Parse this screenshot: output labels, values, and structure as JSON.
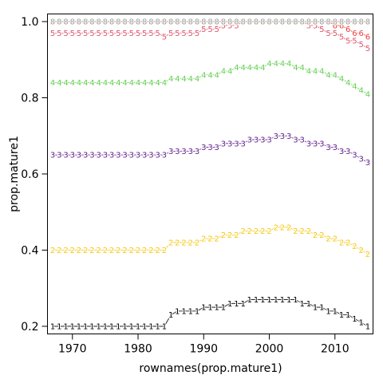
{
  "chart_data": {
    "type": "line",
    "xlabel": "rownames(prop.mature1)",
    "ylabel": "prop.mature1",
    "xlim": [
      1966.2,
      2015.8
    ],
    "ylim": [
      0.18,
      1.02
    ],
    "xticks": [
      1970,
      1980,
      1990,
      2000,
      2010
    ],
    "xtick_labels": [
      "1970",
      "1980",
      "1990",
      "2000",
      "2010"
    ],
    "yticks": [
      0.2,
      0.4,
      0.6,
      0.8,
      1.0
    ],
    "ytick_labels": [
      "0.2",
      "0.4",
      "0.6",
      "0.8",
      "1.0"
    ],
    "grid": false,
    "x": [
      1967,
      1968,
      1969,
      1970,
      1971,
      1972,
      1973,
      1974,
      1975,
      1976,
      1977,
      1978,
      1979,
      1980,
      1981,
      1982,
      1983,
      1984,
      1985,
      1986,
      1987,
      1988,
      1989,
      1990,
      1991,
      1992,
      1993,
      1994,
      1995,
      1996,
      1997,
      1998,
      1999,
      2000,
      2001,
      2002,
      2003,
      2004,
      2005,
      2006,
      2007,
      2008,
      2009,
      2010,
      2011,
      2012,
      2013,
      2014,
      2015
    ],
    "series": [
      {
        "name": "1",
        "color": "#000000",
        "values": [
          0.2,
          0.2,
          0.2,
          0.2,
          0.2,
          0.2,
          0.2,
          0.2,
          0.2,
          0.2,
          0.2,
          0.2,
          0.2,
          0.2,
          0.2,
          0.2,
          0.2,
          0.2,
          0.23,
          0.24,
          0.24,
          0.24,
          0.24,
          0.25,
          0.25,
          0.25,
          0.25,
          0.26,
          0.26,
          0.26,
          0.27,
          0.27,
          0.27,
          0.27,
          0.27,
          0.27,
          0.27,
          0.27,
          0.26,
          0.26,
          0.25,
          0.25,
          0.24,
          0.24,
          0.23,
          0.23,
          0.22,
          0.21,
          0.2
        ]
      },
      {
        "name": "2",
        "color": "#F5C710",
        "values": [
          0.4,
          0.4,
          0.4,
          0.4,
          0.4,
          0.4,
          0.4,
          0.4,
          0.4,
          0.4,
          0.4,
          0.4,
          0.4,
          0.4,
          0.4,
          0.4,
          0.4,
          0.4,
          0.42,
          0.42,
          0.42,
          0.42,
          0.42,
          0.43,
          0.43,
          0.43,
          0.44,
          0.44,
          0.44,
          0.45,
          0.45,
          0.45,
          0.45,
          0.45,
          0.46,
          0.46,
          0.46,
          0.45,
          0.45,
          0.45,
          0.44,
          0.44,
          0.43,
          0.43,
          0.42,
          0.42,
          0.41,
          0.4,
          0.39
        ]
      },
      {
        "name": "3",
        "color": "#61208D",
        "values": [
          0.65,
          0.65,
          0.65,
          0.65,
          0.65,
          0.65,
          0.65,
          0.65,
          0.65,
          0.65,
          0.65,
          0.65,
          0.65,
          0.65,
          0.65,
          0.65,
          0.65,
          0.65,
          0.66,
          0.66,
          0.66,
          0.66,
          0.66,
          0.67,
          0.67,
          0.67,
          0.68,
          0.68,
          0.68,
          0.68,
          0.69,
          0.69,
          0.69,
          0.69,
          0.7,
          0.7,
          0.7,
          0.69,
          0.69,
          0.68,
          0.68,
          0.68,
          0.67,
          0.67,
          0.66,
          0.66,
          0.65,
          0.64,
          0.63
        ]
      },
      {
        "name": "4",
        "color": "#61D04F",
        "values": [
          0.84,
          0.84,
          0.84,
          0.84,
          0.84,
          0.84,
          0.84,
          0.84,
          0.84,
          0.84,
          0.84,
          0.84,
          0.84,
          0.84,
          0.84,
          0.84,
          0.84,
          0.84,
          0.85,
          0.85,
          0.85,
          0.85,
          0.85,
          0.86,
          0.86,
          0.86,
          0.87,
          0.87,
          0.88,
          0.88,
          0.88,
          0.88,
          0.88,
          0.89,
          0.89,
          0.89,
          0.89,
          0.88,
          0.88,
          0.87,
          0.87,
          0.87,
          0.86,
          0.86,
          0.85,
          0.84,
          0.83,
          0.82,
          0.81
        ]
      },
      {
        "name": "5",
        "color": "#DF536B",
        "values": [
          0.97,
          0.97,
          0.97,
          0.97,
          0.97,
          0.97,
          0.97,
          0.97,
          0.97,
          0.97,
          0.97,
          0.97,
          0.97,
          0.97,
          0.97,
          0.97,
          0.97,
          0.96,
          0.97,
          0.97,
          0.97,
          0.97,
          0.97,
          0.98,
          0.98,
          0.98,
          0.99,
          0.99,
          0.99,
          1.0,
          1.0,
          1.0,
          1.0,
          1.0,
          1.0,
          1.0,
          1.0,
          1.0,
          1.0,
          0.99,
          0.99,
          0.98,
          0.97,
          0.97,
          0.96,
          0.95,
          0.95,
          0.94,
          0.93
        ]
      },
      {
        "name": "6",
        "color": "#EE3B3B",
        "values": [
          1.0,
          1.0,
          1.0,
          1.0,
          1.0,
          1.0,
          1.0,
          1.0,
          1.0,
          1.0,
          1.0,
          1.0,
          1.0,
          1.0,
          1.0,
          1.0,
          1.0,
          1.0,
          1.0,
          1.0,
          1.0,
          1.0,
          1.0,
          1.0,
          1.0,
          1.0,
          1.0,
          1.0,
          1.0,
          1.0,
          1.0,
          1.0,
          1.0,
          1.0,
          1.0,
          1.0,
          1.0,
          1.0,
          1.0,
          1.0,
          1.0,
          1.0,
          1.0,
          0.99,
          0.99,
          0.98,
          0.97,
          0.97,
          0.96
        ]
      },
      {
        "name": "7",
        "color": "#DF7F00",
        "values": [
          1.0,
          1.0,
          1.0,
          1.0,
          1.0,
          1.0,
          1.0,
          1.0,
          1.0,
          1.0,
          1.0,
          1.0,
          1.0,
          1.0,
          1.0,
          1.0,
          1.0,
          1.0,
          1.0,
          1.0,
          1.0,
          1.0,
          1.0,
          1.0,
          1.0,
          1.0,
          1.0,
          1.0,
          1.0,
          1.0,
          1.0,
          1.0,
          1.0,
          1.0,
          1.0,
          1.0,
          1.0,
          1.0,
          1.0,
          1.0,
          1.0,
          1.0,
          1.0,
          1.0,
          1.0,
          1.0,
          1.0,
          1.0,
          1.0
        ]
      },
      {
        "name": "8",
        "color": "#9E9E9E",
        "values": [
          1.0,
          1.0,
          1.0,
          1.0,
          1.0,
          1.0,
          1.0,
          1.0,
          1.0,
          1.0,
          1.0,
          1.0,
          1.0,
          1.0,
          1.0,
          1.0,
          1.0,
          1.0,
          1.0,
          1.0,
          1.0,
          1.0,
          1.0,
          1.0,
          1.0,
          1.0,
          1.0,
          1.0,
          1.0,
          1.0,
          1.0,
          1.0,
          1.0,
          1.0,
          1.0,
          1.0,
          1.0,
          1.0,
          1.0,
          1.0,
          1.0,
          1.0,
          1.0,
          1.0,
          1.0,
          1.0,
          1.0,
          1.0,
          1.0
        ]
      }
    ]
  }
}
